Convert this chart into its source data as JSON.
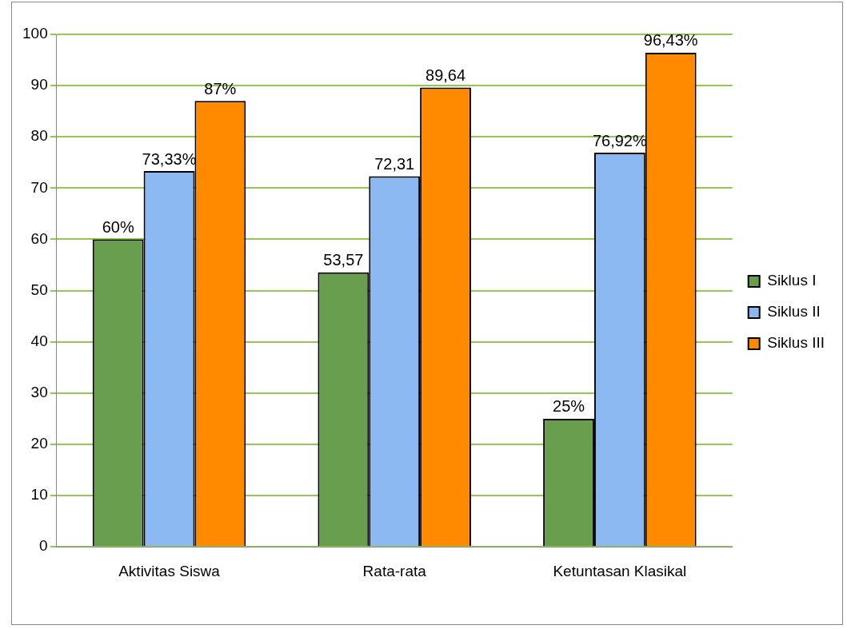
{
  "chart_data": {
    "type": "bar",
    "categories": [
      "Aktivitas Siswa",
      "Rata-rata",
      "Ketuntasan Klasikal"
    ],
    "series": [
      {
        "name": "Siklus I",
        "color": "#6a9e4f",
        "values": [
          60,
          53.57,
          25
        ],
        "value_labels": [
          "60%",
          "53,57",
          "25%"
        ]
      },
      {
        "name": "Siklus II",
        "color": "#8cb8f2",
        "values": [
          73.33,
          72.31,
          76.92
        ],
        "value_labels": [
          "73,33%",
          "72,31",
          "76,92%"
        ]
      },
      {
        "name": "Siklus III",
        "color": "#ff8a00",
        "values": [
          87,
          89.64,
          96.43
        ],
        "value_labels": [
          "87%",
          "89,64",
          "96,43%"
        ]
      }
    ],
    "ylim": [
      0,
      100
    ],
    "yticks": [
      0,
      10,
      20,
      30,
      40,
      50,
      60,
      70,
      80,
      90,
      100
    ],
    "grid": "y",
    "legend": "right"
  }
}
